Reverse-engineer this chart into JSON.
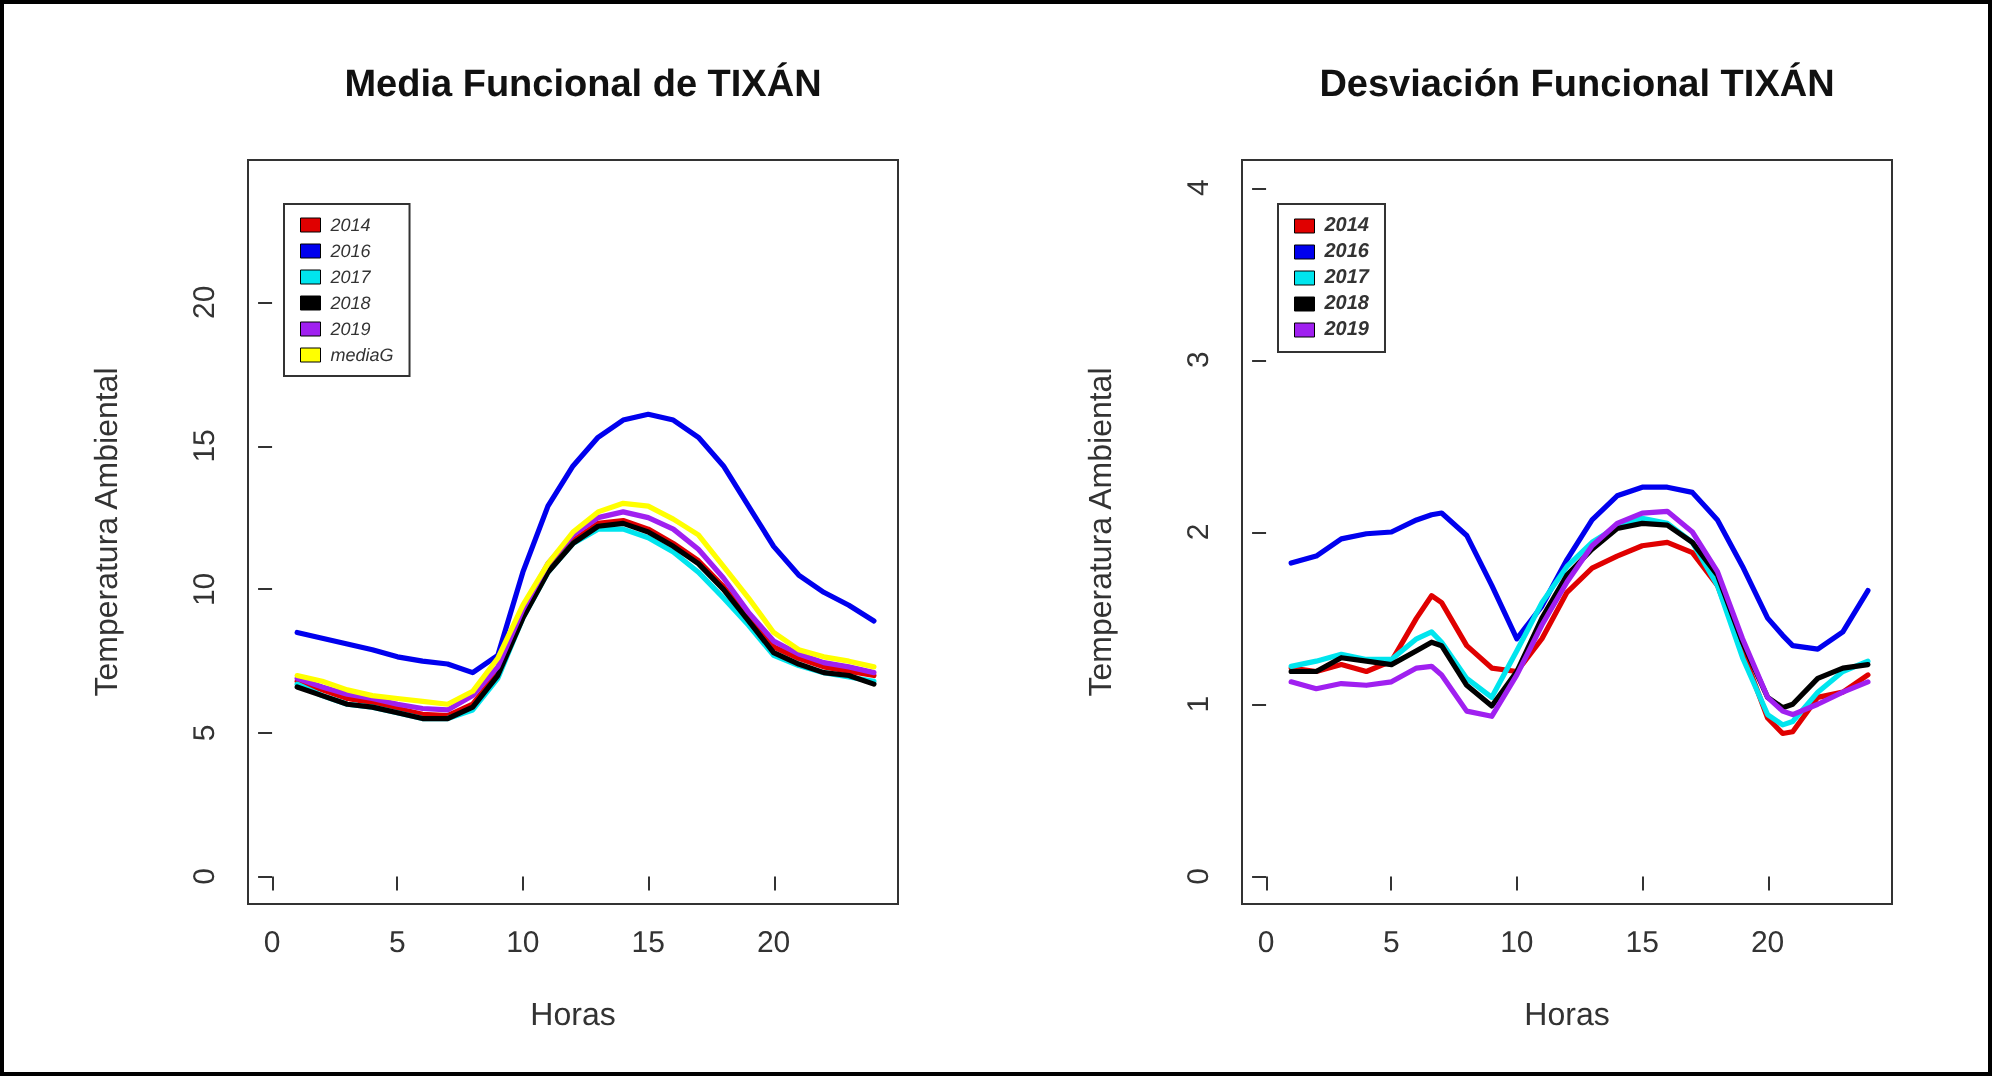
{
  "chart_data": [
    {
      "type": "line",
      "title": "Media Funcional de TIXÁN",
      "xlabel": "Horas",
      "ylabel": "Temperatura Ambiental",
      "legend": "top left",
      "x": [
        1,
        2,
        3,
        4,
        5,
        6,
        7,
        8,
        9,
        10,
        11,
        12,
        13,
        14,
        15,
        16,
        17,
        18,
        19,
        20,
        21,
        22,
        23,
        24
      ],
      "xlim": [
        -0.96,
        24.96
      ],
      "xticks": [
        0,
        5,
        10,
        15,
        20
      ],
      "ylim": [
        -0.96,
        24.96
      ],
      "yticks": [
        0,
        5,
        10,
        15,
        20
      ],
      "series": [
        {
          "name": "2014",
          "color": "#e00000",
          "values": [
            6.8,
            6.5,
            6.2,
            6.05,
            5.85,
            5.65,
            5.6,
            6.0,
            7.1,
            null,
            10.7,
            11.7,
            12.3,
            12.4,
            12.1,
            11.6,
            11.0,
            10.1,
            9.0,
            8.0,
            7.6,
            7.3,
            7.15,
            7.0
          ]
        },
        {
          "name": "2016",
          "color": "#0000ee",
          "values": [
            8.5,
            8.3,
            8.1,
            7.9,
            7.65,
            7.5,
            7.4,
            7.1,
            7.7,
            10.6,
            12.9,
            14.3,
            15.3,
            15.9,
            16.1,
            15.9,
            15.3,
            14.3,
            12.9,
            11.5,
            10.5,
            9.9,
            9.45,
            8.9
          ]
        },
        {
          "name": "2017",
          "color": "#00e5ee",
          "values": [
            6.7,
            6.3,
            6.0,
            5.9,
            5.7,
            5.5,
            5.5,
            5.8,
            6.9,
            9.0,
            10.6,
            11.6,
            12.1,
            12.1,
            11.8,
            11.3,
            10.6,
            9.7,
            8.75,
            7.7,
            7.35,
            7.1,
            6.95,
            6.8
          ]
        },
        {
          "name": "2018",
          "color": "#000000",
          "values": [
            6.6,
            6.3,
            6.0,
            5.9,
            5.7,
            5.5,
            5.5,
            5.9,
            7.0,
            9.0,
            10.6,
            11.6,
            12.2,
            12.3,
            12.0,
            11.5,
            10.9,
            10.0,
            8.9,
            7.8,
            7.4,
            7.1,
            7.0,
            6.7
          ]
        },
        {
          "name": "2019",
          "color": "#a020f0",
          "values": [
            6.9,
            6.6,
            6.35,
            6.2,
            6.0,
            5.85,
            5.8,
            6.3,
            7.3,
            9.3,
            10.9,
            11.9,
            12.5,
            12.7,
            12.5,
            12.1,
            11.4,
            10.4,
            9.2,
            8.2,
            7.75,
            7.45,
            7.3,
            7.1
          ]
        },
        {
          "name": "mediaG",
          "color": "#ffff00",
          "values": [
            7.0,
            6.8,
            6.5,
            6.3,
            6.2,
            6.1,
            6.0,
            6.45,
            7.6,
            9.45,
            10.9,
            12.0,
            12.7,
            13.0,
            12.9,
            12.45,
            11.9,
            10.8,
            9.7,
            8.5,
            7.9,
            7.65,
            7.5,
            7.3
          ]
        }
      ]
    },
    {
      "type": "line",
      "title": "Desviación Funcional TIXÁN",
      "xlabel": "Horas",
      "ylabel": "Temperatura Ambiental",
      "legend": "top left",
      "x": [
        1,
        2,
        3,
        4,
        5,
        6,
        6.6,
        7,
        8,
        9,
        10,
        11,
        12,
        13,
        14,
        15,
        16,
        17,
        18,
        19,
        20,
        20.6,
        21,
        22,
        23,
        24
      ],
      "xlim": [
        -0.96,
        24.96
      ],
      "xticks": [
        0,
        5,
        10,
        15,
        20
      ],
      "ylim": [
        -0.16,
        4.16
      ],
      "yticks": [
        0,
        1,
        2,
        3,
        4
      ],
      "series": [
        {
          "name": "2014",
          "color": "#e00000",
          "values": [
            1.21,
            1.19,
            1.23,
            1.19,
            1.25,
            1.5,
            1.63,
            1.59,
            1.34,
            1.21,
            1.19,
            1.38,
            1.65,
            1.79,
            1.86,
            1.92,
            1.94,
            1.88,
            1.69,
            1.31,
            0.92,
            0.83,
            0.84,
            1.04,
            1.07,
            1.17
          ]
        },
        {
          "name": "2016",
          "color": "#0000ee",
          "values": [
            1.82,
            1.86,
            1.96,
            1.99,
            2.0,
            2.07,
            2.1,
            2.11,
            1.98,
            1.69,
            1.38,
            1.57,
            1.84,
            2.07,
            2.21,
            2.26,
            2.26,
            2.23,
            2.07,
            1.8,
            1.5,
            1.4,
            1.34,
            1.32,
            1.42,
            1.66
          ]
        },
        {
          "name": "2017",
          "color": "#00e5ee",
          "values": [
            1.22,
            1.25,
            1.29,
            1.26,
            1.26,
            1.38,
            1.42,
            1.36,
            1.15,
            1.04,
            1.31,
            1.59,
            1.8,
            1.94,
            2.03,
            2.08,
            2.05,
            1.94,
            1.69,
            1.27,
            0.94,
            0.88,
            0.9,
            1.07,
            1.19,
            1.25
          ]
        },
        {
          "name": "2018",
          "color": "#000000",
          "values": [
            1.19,
            1.19,
            1.27,
            1.25,
            1.23,
            1.31,
            1.36,
            1.34,
            1.11,
            0.99,
            1.19,
            1.5,
            1.75,
            1.9,
            2.02,
            2.05,
            2.04,
            1.94,
            1.75,
            1.36,
            1.04,
            0.98,
            1.0,
            1.15,
            1.21,
            1.23
          ]
        },
        {
          "name": "2019",
          "color": "#a020f0",
          "values": [
            1.13,
            1.09,
            1.12,
            1.11,
            1.13,
            1.21,
            1.22,
            1.17,
            0.96,
            0.93,
            1.17,
            1.46,
            1.71,
            1.92,
            2.05,
            2.11,
            2.12,
            2.0,
            1.77,
            1.38,
            1.04,
            0.96,
            0.94,
            1.0,
            1.07,
            1.13
          ]
        }
      ]
    }
  ]
}
